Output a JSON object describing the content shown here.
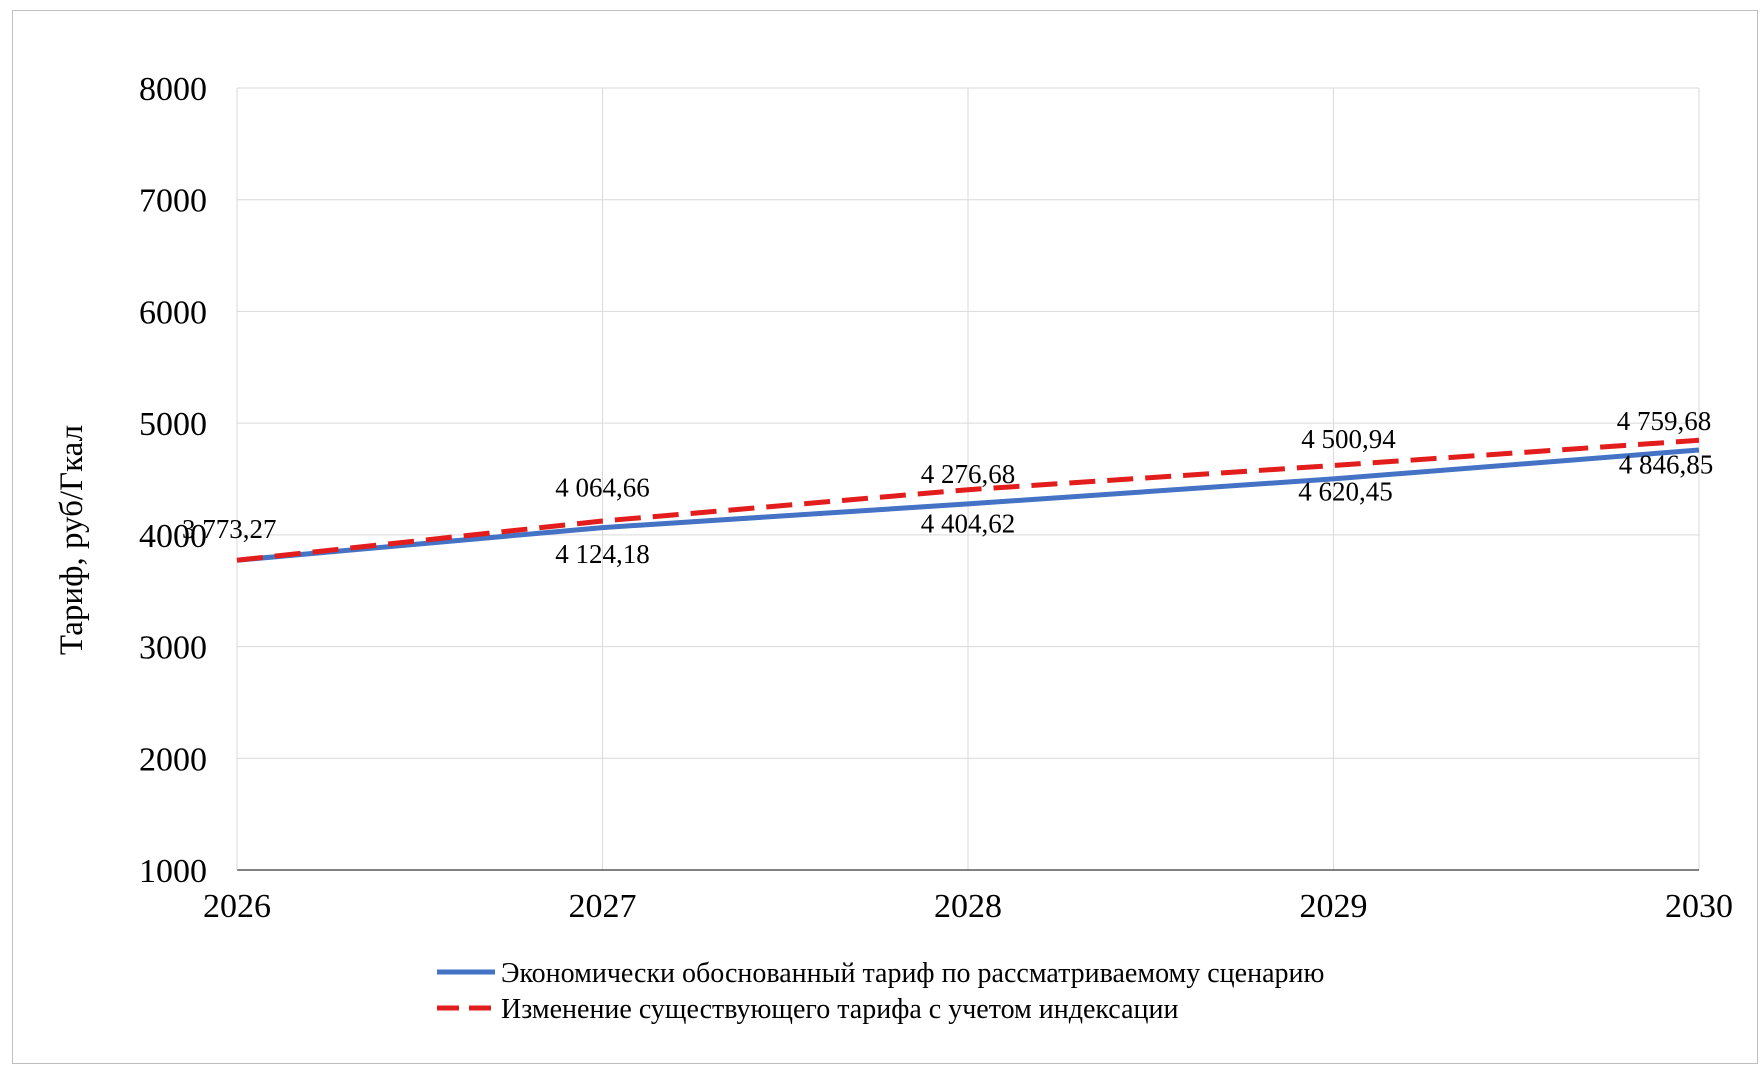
{
  "chart_data": {
    "type": "line",
    "ylabel": "Тариф, руб/Гкал",
    "xlabel": "",
    "title": "",
    "x": [
      "2026",
      "2027",
      "2028",
      "2029",
      "2030"
    ],
    "ylim": [
      1000,
      8000
    ],
    "yticks": [
      "1000",
      "2000",
      "3000",
      "4000",
      "5000",
      "6000",
      "7000",
      "8000"
    ],
    "grid": true,
    "legend_position": "bottom",
    "series": [
      {
        "name": "Экономически обоснованный тариф по рассматриваемому сценарию",
        "values": [
          3773.27,
          4064.66,
          4276.68,
          4500.94,
          4759.68
        ],
        "labels": [
          "3 773,27",
          "4 064,66",
          "4 276,68",
          "4 500,94",
          "4 759,68"
        ],
        "color": "#4472c4",
        "style": "solid"
      },
      {
        "name": "Изменение существующего тарифа с учетом индексации",
        "values": [
          3773.27,
          4124.18,
          4404.62,
          4620.45,
          4846.85
        ],
        "labels": [
          "",
          "4 124,18",
          "4 404,62",
          "4 620,45",
          "4 846,85"
        ],
        "color": "#e31c1c",
        "style": "dashed"
      }
    ]
  }
}
